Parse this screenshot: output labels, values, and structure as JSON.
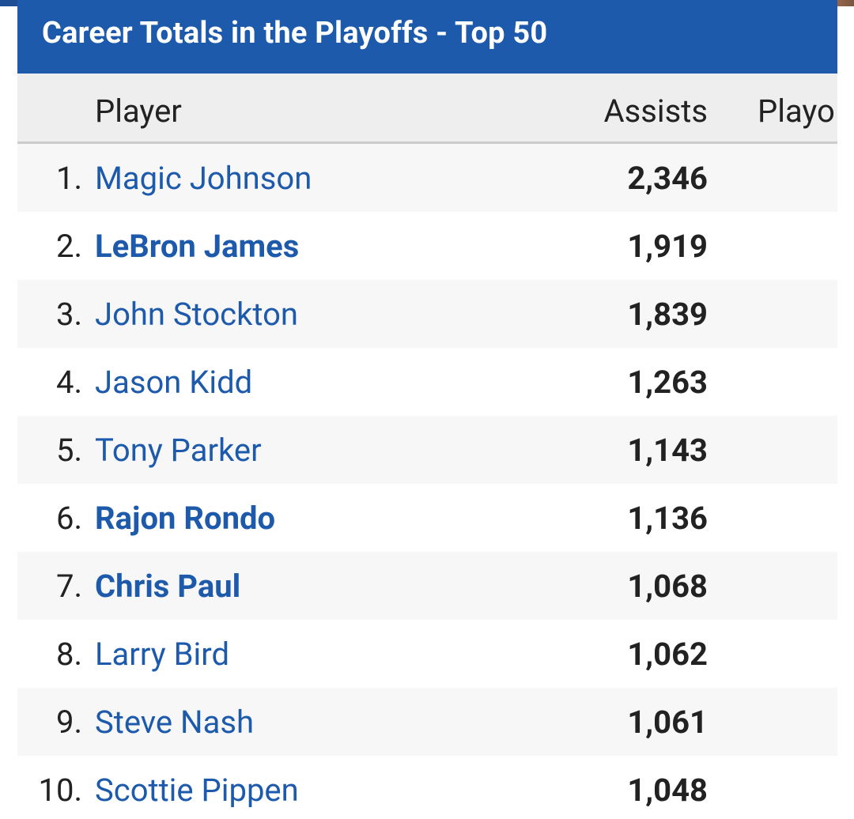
{
  "title": "Career Totals in the Playoffs - Top 50",
  "columns": {
    "player": "Player",
    "assists": "Assists",
    "playoffs": "Playo"
  },
  "colors": {
    "title_bar": "#1d5aab",
    "link": "#1d5aab",
    "header_bg": "#eeeeee",
    "row_alt_bg": "#f7f7f7"
  },
  "rows": [
    {
      "rank": "1.",
      "name": "Magic Johnson",
      "assists": "2,346",
      "active": false
    },
    {
      "rank": "2.",
      "name": "LeBron James",
      "assists": "1,919",
      "active": true
    },
    {
      "rank": "3.",
      "name": "John Stockton",
      "assists": "1,839",
      "active": false
    },
    {
      "rank": "4.",
      "name": "Jason Kidd",
      "assists": "1,263",
      "active": false
    },
    {
      "rank": "5.",
      "name": "Tony Parker",
      "assists": "1,143",
      "active": false
    },
    {
      "rank": "6.",
      "name": "Rajon Rondo",
      "assists": "1,136",
      "active": true
    },
    {
      "rank": "7.",
      "name": "Chris Paul",
      "assists": "1,068",
      "active": true
    },
    {
      "rank": "8.",
      "name": "Larry Bird",
      "assists": "1,062",
      "active": false
    },
    {
      "rank": "9.",
      "name": "Steve Nash",
      "assists": "1,061",
      "active": false
    },
    {
      "rank": "10.",
      "name": "Scottie Pippen",
      "assists": "1,048",
      "active": false
    }
  ]
}
